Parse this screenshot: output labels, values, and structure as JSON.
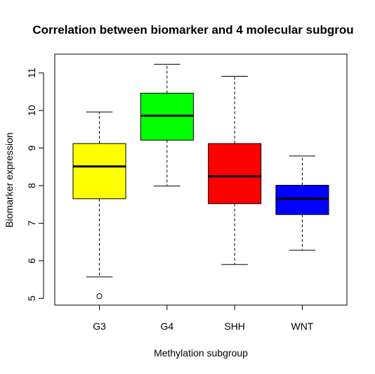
{
  "chart_data": {
    "type": "boxplot",
    "title": "Correlation between biomarker and 4 molecular subgrou",
    "xlabel": "Methylation subgroup",
    "ylabel": "Biomarker expression",
    "ylim": [
      4.82,
      11.5
    ],
    "yticks": [
      5,
      6,
      7,
      8,
      9,
      10,
      11
    ],
    "categories": [
      "G3",
      "G4",
      "SHH",
      "WNT"
    ],
    "boxes": [
      {
        "category": "G3",
        "color": "#FFFF00",
        "whisker_low": 5.57,
        "q1": 7.65,
        "median": 8.51,
        "q3": 9.12,
        "whisker_high": 9.96,
        "outliers": [
          5.06
        ]
      },
      {
        "category": "G4",
        "color": "#00FF00",
        "whisker_low": 7.99,
        "q1": 9.21,
        "median": 9.86,
        "q3": 10.46,
        "whisker_high": 11.23,
        "outliers": []
      },
      {
        "category": "SHH",
        "color": "#FF0000",
        "whisker_low": 5.9,
        "q1": 7.52,
        "median": 8.25,
        "q3": 9.12,
        "whisker_high": 10.91,
        "outliers": []
      },
      {
        "category": "WNT",
        "color": "#0000FF",
        "whisker_low": 6.28,
        "q1": 7.23,
        "median": 7.65,
        "q3": 8.01,
        "whisker_high": 8.79,
        "outliers": []
      }
    ],
    "grid": false,
    "legend": "none"
  }
}
